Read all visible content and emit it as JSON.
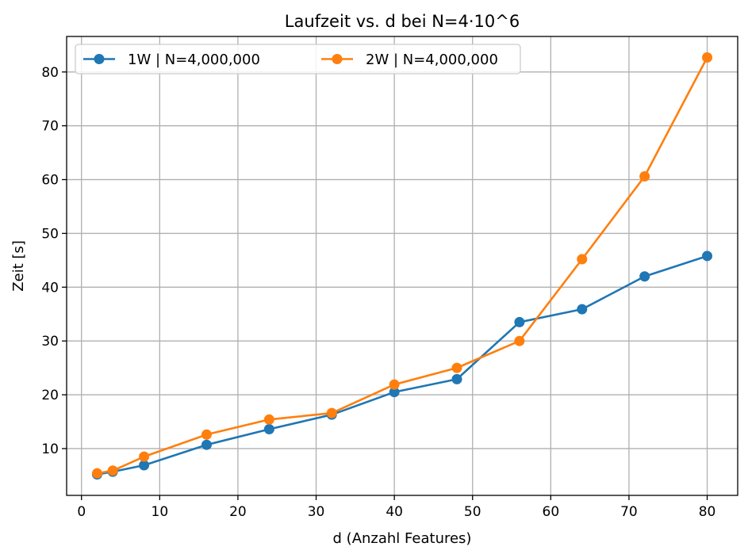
{
  "chart_data": {
    "type": "line",
    "title": "Laufzeit vs. d bei N=4·10^6",
    "xlabel": "d (Anzahl Features)",
    "ylabel": "Zeit [s]",
    "x": [
      2,
      4,
      8,
      16,
      24,
      32,
      40,
      48,
      56,
      64,
      72,
      80
    ],
    "series": [
      {
        "name": "1W | N=4,000,000",
        "color": "#1f77b4",
        "values": [
          5.2,
          5.7,
          6.9,
          10.7,
          13.6,
          16.3,
          20.5,
          22.9,
          33.5,
          35.9,
          42.0,
          45.8
        ]
      },
      {
        "name": "2W | N=4,000,000",
        "color": "#ff7f0e",
        "values": [
          5.4,
          5.9,
          8.5,
          12.6,
          15.4,
          16.6,
          21.9,
          25.0,
          30.0,
          45.2,
          60.6,
          82.7
        ]
      }
    ],
    "xlim": [
      -1.9,
      83.9
    ],
    "ylim": [
      1.3,
      86.6
    ],
    "xticks": [
      0,
      10,
      20,
      30,
      40,
      50,
      60,
      70,
      80
    ],
    "yticks": [
      10,
      20,
      30,
      40,
      50,
      60,
      70,
      80
    ],
    "grid": true,
    "legend_position": "top-left"
  }
}
